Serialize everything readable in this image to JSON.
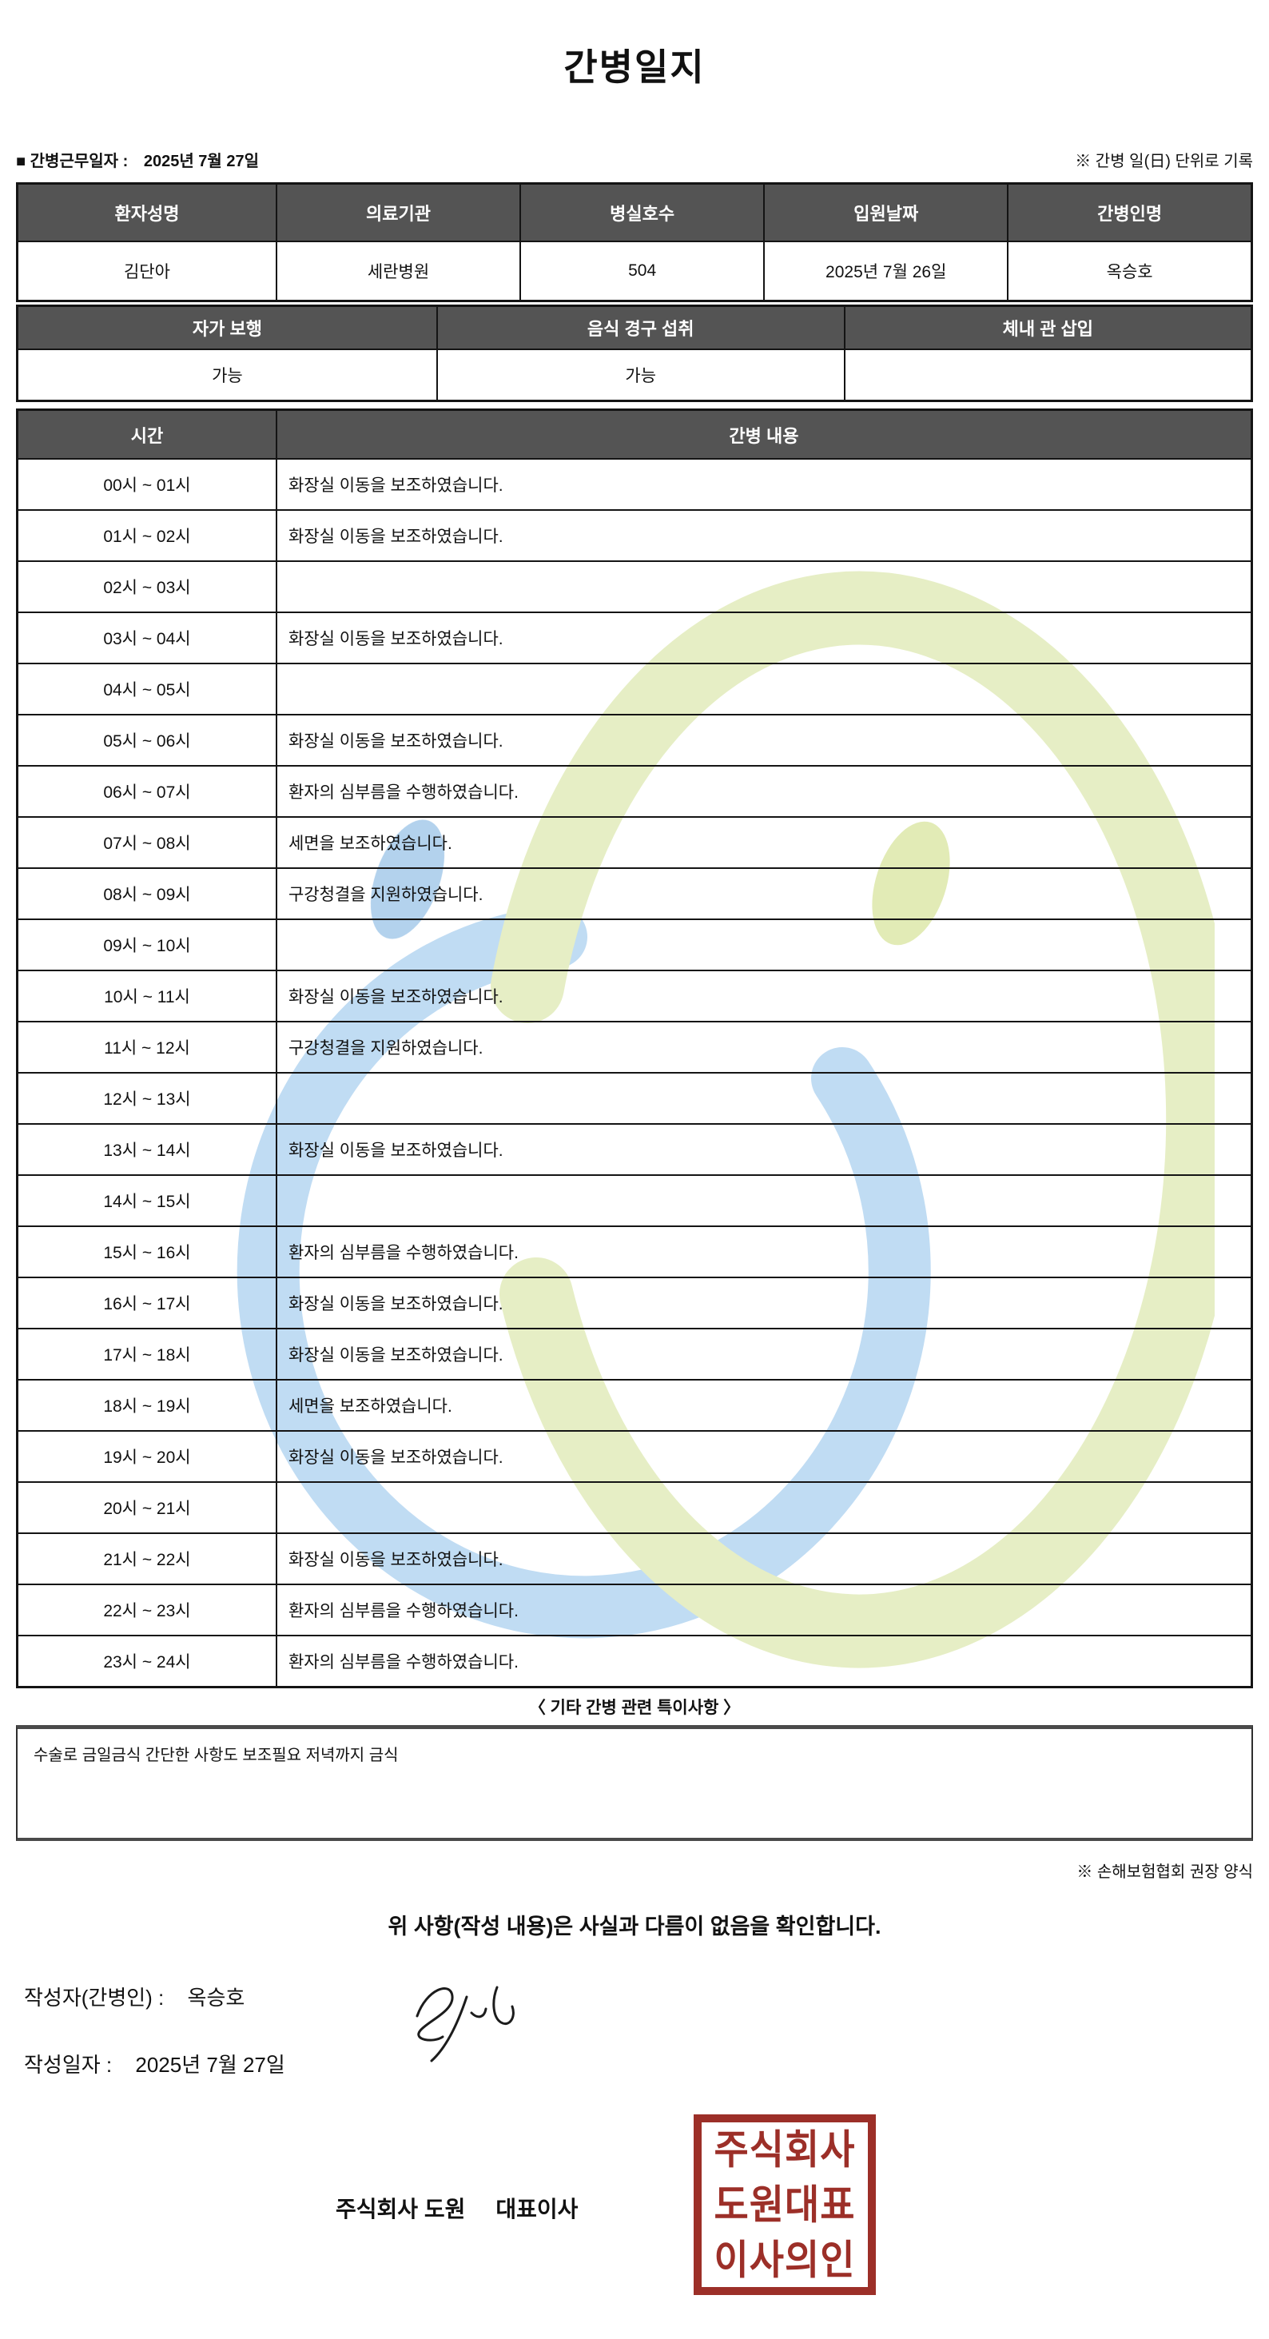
{
  "title": "간병일지",
  "meta": {
    "bullet": "■",
    "work_date_label": "간병근무일자  :",
    "work_date": "2025년 7월 27일",
    "unit_note": "※ 간병 일(日) 단위로 기록"
  },
  "patient_table": {
    "headers": [
      "환자성명",
      "의료기관",
      "병실호수",
      "입원날짜",
      "간병인명"
    ],
    "values": [
      "김단아",
      "세란병원",
      "504",
      "2025년 7월 26일",
      "옥승호"
    ]
  },
  "status_table": {
    "headers": [
      "자가 보행",
      "음식 경구 섭취",
      "체내 관 삽입"
    ],
    "values": [
      "가능",
      "가능",
      ""
    ]
  },
  "care_table": {
    "time_header": "시간",
    "content_header": "간병 내용",
    "rows": [
      {
        "time": "00시 ~ 01시",
        "content": "화장실 이동을 보조하였습니다."
      },
      {
        "time": "01시 ~ 02시",
        "content": "화장실 이동을 보조하였습니다."
      },
      {
        "time": "02시 ~ 03시",
        "content": ""
      },
      {
        "time": "03시 ~ 04시",
        "content": "화장실 이동을 보조하였습니다."
      },
      {
        "time": "04시 ~ 05시",
        "content": ""
      },
      {
        "time": "05시 ~ 06시",
        "content": "화장실 이동을 보조하였습니다."
      },
      {
        "time": "06시 ~ 07시",
        "content": "환자의 심부름을 수행하였습니다."
      },
      {
        "time": "07시 ~ 08시",
        "content": "세면을 보조하였습니다."
      },
      {
        "time": "08시 ~ 09시",
        "content": "구강청결을 지원하였습니다."
      },
      {
        "time": "09시 ~ 10시",
        "content": ""
      },
      {
        "time": "10시 ~ 11시",
        "content": "화장실 이동을 보조하였습니다."
      },
      {
        "time": "11시 ~ 12시",
        "content": "구강청결을 지원하였습니다."
      },
      {
        "time": "12시 ~ 13시",
        "content": ""
      },
      {
        "time": "13시 ~ 14시",
        "content": "화장실 이동을 보조하였습니다."
      },
      {
        "time": "14시 ~ 15시",
        "content": ""
      },
      {
        "time": "15시 ~ 16시",
        "content": "환자의 심부름을 수행하였습니다."
      },
      {
        "time": "16시 ~ 17시",
        "content": "화장실 이동을 보조하였습니다."
      },
      {
        "time": "17시 ~ 18시",
        "content": "화장실 이동을 보조하였습니다."
      },
      {
        "time": "18시 ~ 19시",
        "content": "세면을 보조하였습니다."
      },
      {
        "time": "19시 ~ 20시",
        "content": "화장실 이동을 보조하였습니다."
      },
      {
        "time": "20시 ~ 21시",
        "content": ""
      },
      {
        "time": "21시 ~ 22시",
        "content": "화장실 이동을 보조하였습니다."
      },
      {
        "time": "22시 ~ 23시",
        "content": "환자의 심부름을 수행하였습니다."
      },
      {
        "time": "23시 ~ 24시",
        "content": "환자의 심부름을 수행하였습니다."
      }
    ]
  },
  "notes": {
    "heading": "〈 기타 간병 관련 특이사항 〉",
    "content": "수술로 금일금식 간단한 사항도 보조필요 저녁까지 금식",
    "form_note": "※ 손해보험협회 권장 양식"
  },
  "confirmation": {
    "statement": "위 사항(작성 내용)은 사실과 다름이 없음을 확인합니다.",
    "writer_label": "작성자(간병인) :",
    "writer_name": "옥승호",
    "date_label": "작성일자 :",
    "date_value": "2025년 7월 27일",
    "company_name": "주식회사 도원",
    "company_role": "대표이사",
    "stamp_lines": [
      "주식회사",
      "도원대표",
      "이사의인"
    ]
  },
  "colors": {
    "header_bg": "#545454",
    "line": "#141414",
    "stamp": "#9c2f28",
    "wm_blue": "#b9d8f2",
    "wm_blue_dot": "#abcdeb",
    "wm_green": "#e4edbf",
    "wm_green_dot": "#dfe9ae"
  }
}
